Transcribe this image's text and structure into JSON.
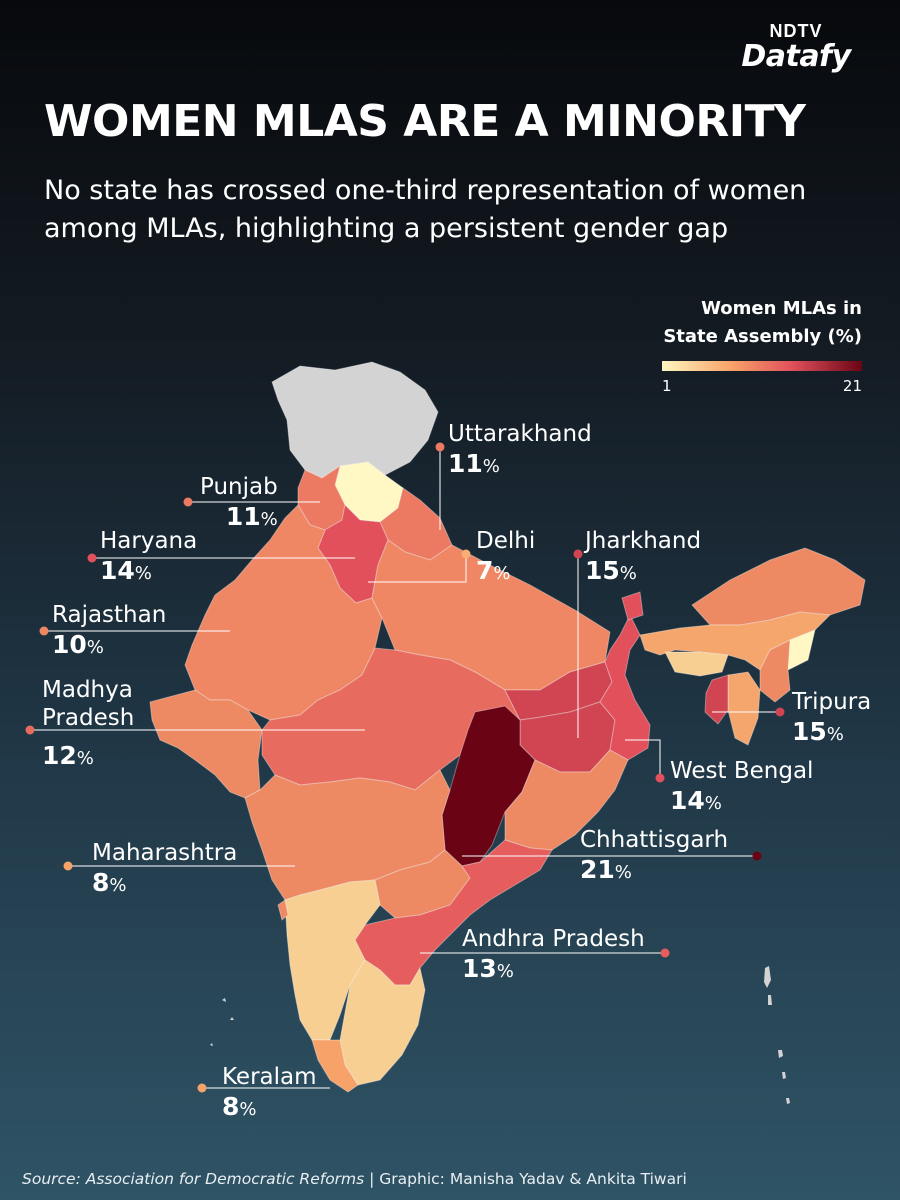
{
  "logo": {
    "top": "NDTV",
    "bottom": "Datafy"
  },
  "title": "WOMEN MLAS ARE A MINORITY",
  "subtitle": "No state has crossed one-third representation of women among MLAs, highlighting a persistent gender gap",
  "legend": {
    "title_line1": "Women MLAs in",
    "title_line2": "State Assembly (%)",
    "min": "1",
    "max": "21"
  },
  "colors": {
    "grey": "#d3d3d3",
    "c1": "#fff8c4",
    "c2": "#f8cf92",
    "c3": "#f5a66d",
    "c4": "#ee8a63",
    "c5": "#e45a55",
    "c6": "#d8433f",
    "c7": "#6c0616"
  },
  "chart_data": {
    "type": "choropleth",
    "title": "WOMEN MLAS ARE A MINORITY",
    "legend_range": [
      1,
      21
    ],
    "regions": [
      {
        "name": "Uttarakhand",
        "value": 11,
        "label": "11"
      },
      {
        "name": "Punjab",
        "value": 11,
        "label": "11"
      },
      {
        "name": "Haryana",
        "value": 14,
        "label": "14"
      },
      {
        "name": "Delhi",
        "value": 7,
        "label": "7"
      },
      {
        "name": "Jharkhand",
        "value": 15,
        "label": "15"
      },
      {
        "name": "Rajasthan",
        "value": 10,
        "label": "10"
      },
      {
        "name": "Madhya Pradesh",
        "value": 12,
        "label": "12",
        "name_line1": "Madhya",
        "name_line2": "Pradesh"
      },
      {
        "name": "Tripura",
        "value": 15,
        "label": "15"
      },
      {
        "name": "West Bengal",
        "value": 14,
        "label": "14"
      },
      {
        "name": "Maharashtra",
        "value": 8,
        "label": "8"
      },
      {
        "name": "Chhattisgarh",
        "value": 21,
        "label": "21"
      },
      {
        "name": "Andhra Pradesh",
        "value": 13,
        "label": "13"
      },
      {
        "name": "Keralam",
        "value": 8,
        "label": "8"
      }
    ],
    "percent_symbol": "%"
  },
  "source": {
    "italic": "Source: Association for Democratic Reforms",
    "rest": " | Graphic: Manisha Yadav & Ankita Tiwari"
  }
}
